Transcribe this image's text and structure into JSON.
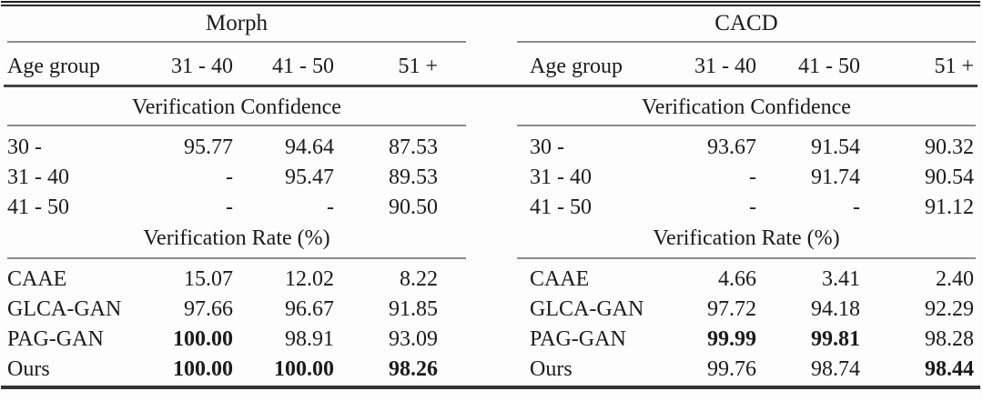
{
  "page": {
    "background": "#fdfdfd",
    "text_color": "#1b1b1b",
    "rule_dark": "#2a2a2a",
    "rule_gray": "#8c8c8c"
  },
  "tables": [
    {
      "title": "Morph",
      "columns": [
        "Age group",
        "31 - 40",
        "41 - 50",
        "51 +"
      ],
      "sections": [
        {
          "label": "Verification Confidence",
          "rows": [
            {
              "label": "30 -",
              "values": [
                "95.77",
                "94.64",
                "87.53"
              ],
              "bold": [
                false,
                false,
                false
              ]
            },
            {
              "label": "31 - 40",
              "values": [
                "-",
                "95.47",
                "89.53"
              ],
              "bold": [
                false,
                false,
                false
              ]
            },
            {
              "label": "41 - 50",
              "values": [
                "-",
                "-",
                "90.50"
              ],
              "bold": [
                false,
                false,
                false
              ]
            }
          ]
        },
        {
          "label": "Verification Rate (%)",
          "rows": [
            {
              "label": "CAAE",
              "values": [
                "15.07",
                "12.02",
                "8.22"
              ],
              "bold": [
                false,
                false,
                false
              ]
            },
            {
              "label": "GLCA-GAN",
              "values": [
                "97.66",
                "96.67",
                "91.85"
              ],
              "bold": [
                false,
                false,
                false
              ]
            },
            {
              "label": "PAG-GAN",
              "values": [
                "100.00",
                "98.91",
                "93.09"
              ],
              "bold": [
                true,
                false,
                false
              ]
            },
            {
              "label": "Ours",
              "values": [
                "100.00",
                "100.00",
                "98.26"
              ],
              "bold": [
                true,
                true,
                true
              ]
            }
          ]
        }
      ]
    },
    {
      "title": "CACD",
      "columns": [
        "Age group",
        "31 - 40",
        "41 - 50",
        "51 +"
      ],
      "sections": [
        {
          "label": "Verification Confidence",
          "rows": [
            {
              "label": "30 -",
              "values": [
                "93.67",
                "91.54",
                "90.32"
              ],
              "bold": [
                false,
                false,
                false
              ]
            },
            {
              "label": "31 - 40",
              "values": [
                "-",
                "91.74",
                "90.54"
              ],
              "bold": [
                false,
                false,
                false
              ]
            },
            {
              "label": "41 - 50",
              "values": [
                "-",
                "-",
                "91.12"
              ],
              "bold": [
                false,
                false,
                false
              ]
            }
          ]
        },
        {
          "label": "Verification Rate (%)",
          "rows": [
            {
              "label": "CAAE",
              "values": [
                "4.66",
                "3.41",
                "2.40"
              ],
              "bold": [
                false,
                false,
                false
              ]
            },
            {
              "label": "GLCA-GAN",
              "values": [
                "97.72",
                "94.18",
                "92.29"
              ],
              "bold": [
                false,
                false,
                false
              ]
            },
            {
              "label": "PAG-GAN",
              "values": [
                "99.99",
                "99.81",
                "98.28"
              ],
              "bold": [
                true,
                true,
                false
              ]
            },
            {
              "label": "Ours",
              "values": [
                "99.76",
                "98.74",
                "98.44"
              ],
              "bold": [
                false,
                false,
                true
              ]
            }
          ]
        }
      ]
    }
  ]
}
